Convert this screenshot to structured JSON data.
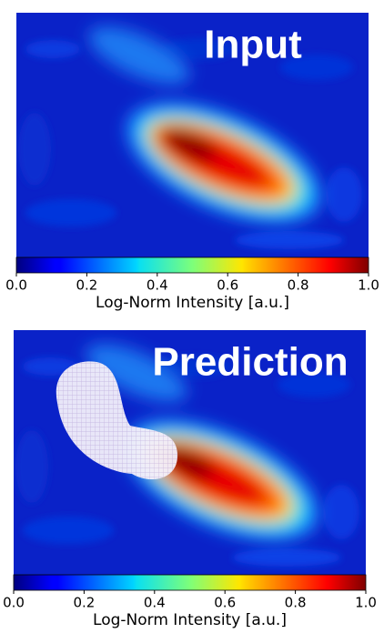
{
  "chart_data": [
    {
      "type": "heatmap",
      "title": "Input",
      "xlabel": "Log-Norm Intensity [a.u.]",
      "xlim": [
        0,
        1
      ],
      "xticks": [
        {
          "value": 0,
          "label": "0.0"
        },
        0.2,
        0.4,
        0.6,
        0.8,
        {
          "value": 1,
          "label": "1.0"
        }
      ]
    },
    {
      "type": "heatmap",
      "title": "Prediction",
      "xlabel": "Log-Norm Intensity [a.u.]",
      "xlim": [
        0,
        1
      ],
      "xticks": [
        {
          "value": 0,
          "label": "0.0"
        },
        0.2,
        0.4,
        0.6,
        0.8,
        {
          "value": 1,
          "label": "1.0"
        }
      ]
    }
  ]
}
